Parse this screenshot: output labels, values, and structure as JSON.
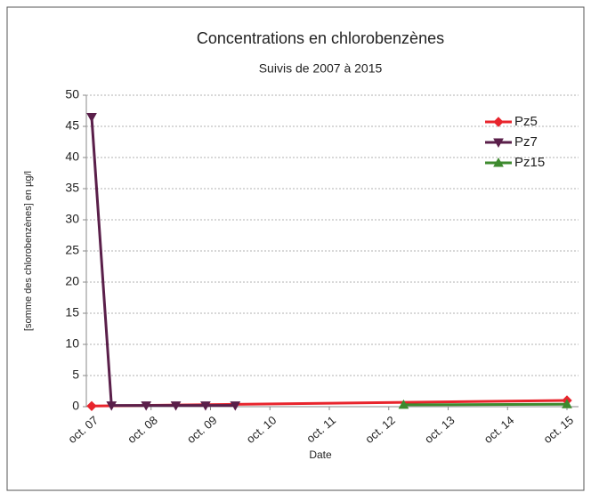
{
  "chart_data": {
    "type": "line",
    "title": "Concentrations en chlorobenzènes",
    "subtitle": "Suivis de 2007 à 2015",
    "x_label": "Date",
    "y_label": "[somme des chlorobenzènes] en µg/l",
    "xlim": [
      "2007-10",
      "2015-10"
    ],
    "xticks": [
      {
        "value": "2007-10",
        "label": "oct. 07"
      },
      {
        "value": "2008-10",
        "label": "oct. 08"
      },
      {
        "value": "2009-10",
        "label": "oct. 09"
      },
      {
        "value": "2010-10",
        "label": "oct. 10"
      },
      {
        "value": "2011-10",
        "label": "oct. 11"
      },
      {
        "value": "2012-10",
        "label": "oct. 12"
      },
      {
        "value": "2013-10",
        "label": "oct. 13"
      },
      {
        "value": "2014-10",
        "label": "oct. 14"
      },
      {
        "value": "2015-10",
        "label": "oct. 15"
      }
    ],
    "ylim": [
      0,
      50
    ],
    "yticks": [
      0,
      5,
      10,
      15,
      20,
      25,
      30,
      35,
      40,
      45,
      50
    ],
    "grid": true,
    "legend": "upper right",
    "series": [
      {
        "name": "Pz5",
        "color": "#e8242c",
        "marker": "diamond",
        "x": [
          "2007-10",
          "2015-10"
        ],
        "values": [
          0.1,
          1.0
        ]
      },
      {
        "name": "Pz7",
        "color": "#5a1f4a",
        "marker": "triangle-down",
        "x": [
          "2007-10",
          "2008-02",
          "2008-09",
          "2009-03",
          "2009-09",
          "2010-03"
        ],
        "values": [
          46.5,
          0.2,
          0.2,
          0.2,
          0.2,
          0.2
        ]
      },
      {
        "name": "Pz15",
        "color": "#3d8a2e",
        "marker": "triangle-up",
        "x": [
          "2013-01",
          "2015-10"
        ],
        "values": [
          0.3,
          0.4
        ]
      }
    ]
  }
}
